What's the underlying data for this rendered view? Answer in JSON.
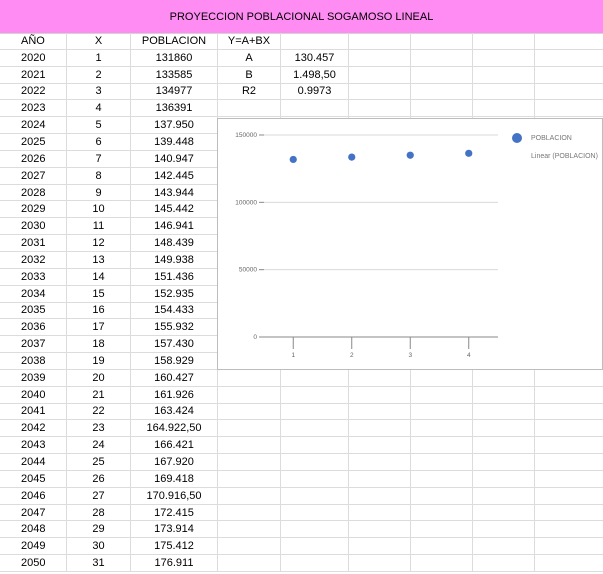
{
  "title": "PROYECCION POBLACIONAL SOGAMOSO LINEAL",
  "headers": [
    "AÑO",
    "X",
    "POBLACION",
    "Y=A+BX"
  ],
  "params": [
    {
      "label": "A",
      "value": "130.457"
    },
    {
      "label": "B",
      "value": "1.498,50"
    },
    {
      "label": "R2",
      "value": "0.9973"
    }
  ],
  "rows": [
    [
      "2020",
      "1",
      "131860"
    ],
    [
      "2021",
      "2",
      "133585"
    ],
    [
      "2022",
      "3",
      "134977"
    ],
    [
      "2023",
      "4",
      "136391"
    ],
    [
      "2024",
      "5",
      "137.950"
    ],
    [
      "2025",
      "6",
      "139.448"
    ],
    [
      "2026",
      "7",
      "140.947"
    ],
    [
      "2027",
      "8",
      "142.445"
    ],
    [
      "2028",
      "9",
      "143.944"
    ],
    [
      "2029",
      "10",
      "145.442"
    ],
    [
      "2030",
      "11",
      "146.941"
    ],
    [
      "2031",
      "12",
      "148.439"
    ],
    [
      "2032",
      "13",
      "149.938"
    ],
    [
      "2033",
      "14",
      "151.436"
    ],
    [
      "2034",
      "15",
      "152.935"
    ],
    [
      "2035",
      "16",
      "154.433"
    ],
    [
      "2036",
      "17",
      "155.932"
    ],
    [
      "2037",
      "18",
      "157.430"
    ],
    [
      "2038",
      "19",
      "158.929"
    ],
    [
      "2039",
      "20",
      "160.427"
    ],
    [
      "2040",
      "21",
      "161.926"
    ],
    [
      "2041",
      "22",
      "163.424"
    ],
    [
      "2042",
      "23",
      "164.922,50"
    ],
    [
      "2043",
      "24",
      "166.421"
    ],
    [
      "2044",
      "25",
      "167.920"
    ],
    [
      "2045",
      "26",
      "169.418"
    ],
    [
      "2046",
      "27",
      "170.916,50"
    ],
    [
      "2047",
      "28",
      "172.415"
    ],
    [
      "2048",
      "29",
      "173.914"
    ],
    [
      "2049",
      "30",
      "175.412"
    ],
    [
      "2050",
      "31",
      "176.911"
    ]
  ],
  "chart_data": {
    "type": "scatter",
    "x": [
      1,
      2,
      3,
      4
    ],
    "series": [
      {
        "name": "POBLACION",
        "values": [
          131860,
          133585,
          134977,
          136391
        ],
        "color": "#4472c4"
      }
    ],
    "legend": [
      "POBLACION",
      "Linear (POBLACION)"
    ],
    "legend_position": "right",
    "yticks": [
      "0",
      "50000",
      "100000",
      "150000"
    ],
    "xticks": [
      "1",
      "2",
      "3",
      "4"
    ],
    "ylim": [
      0,
      150000
    ],
    "xlim": [
      0.5,
      4.5
    ],
    "grid": true
  }
}
